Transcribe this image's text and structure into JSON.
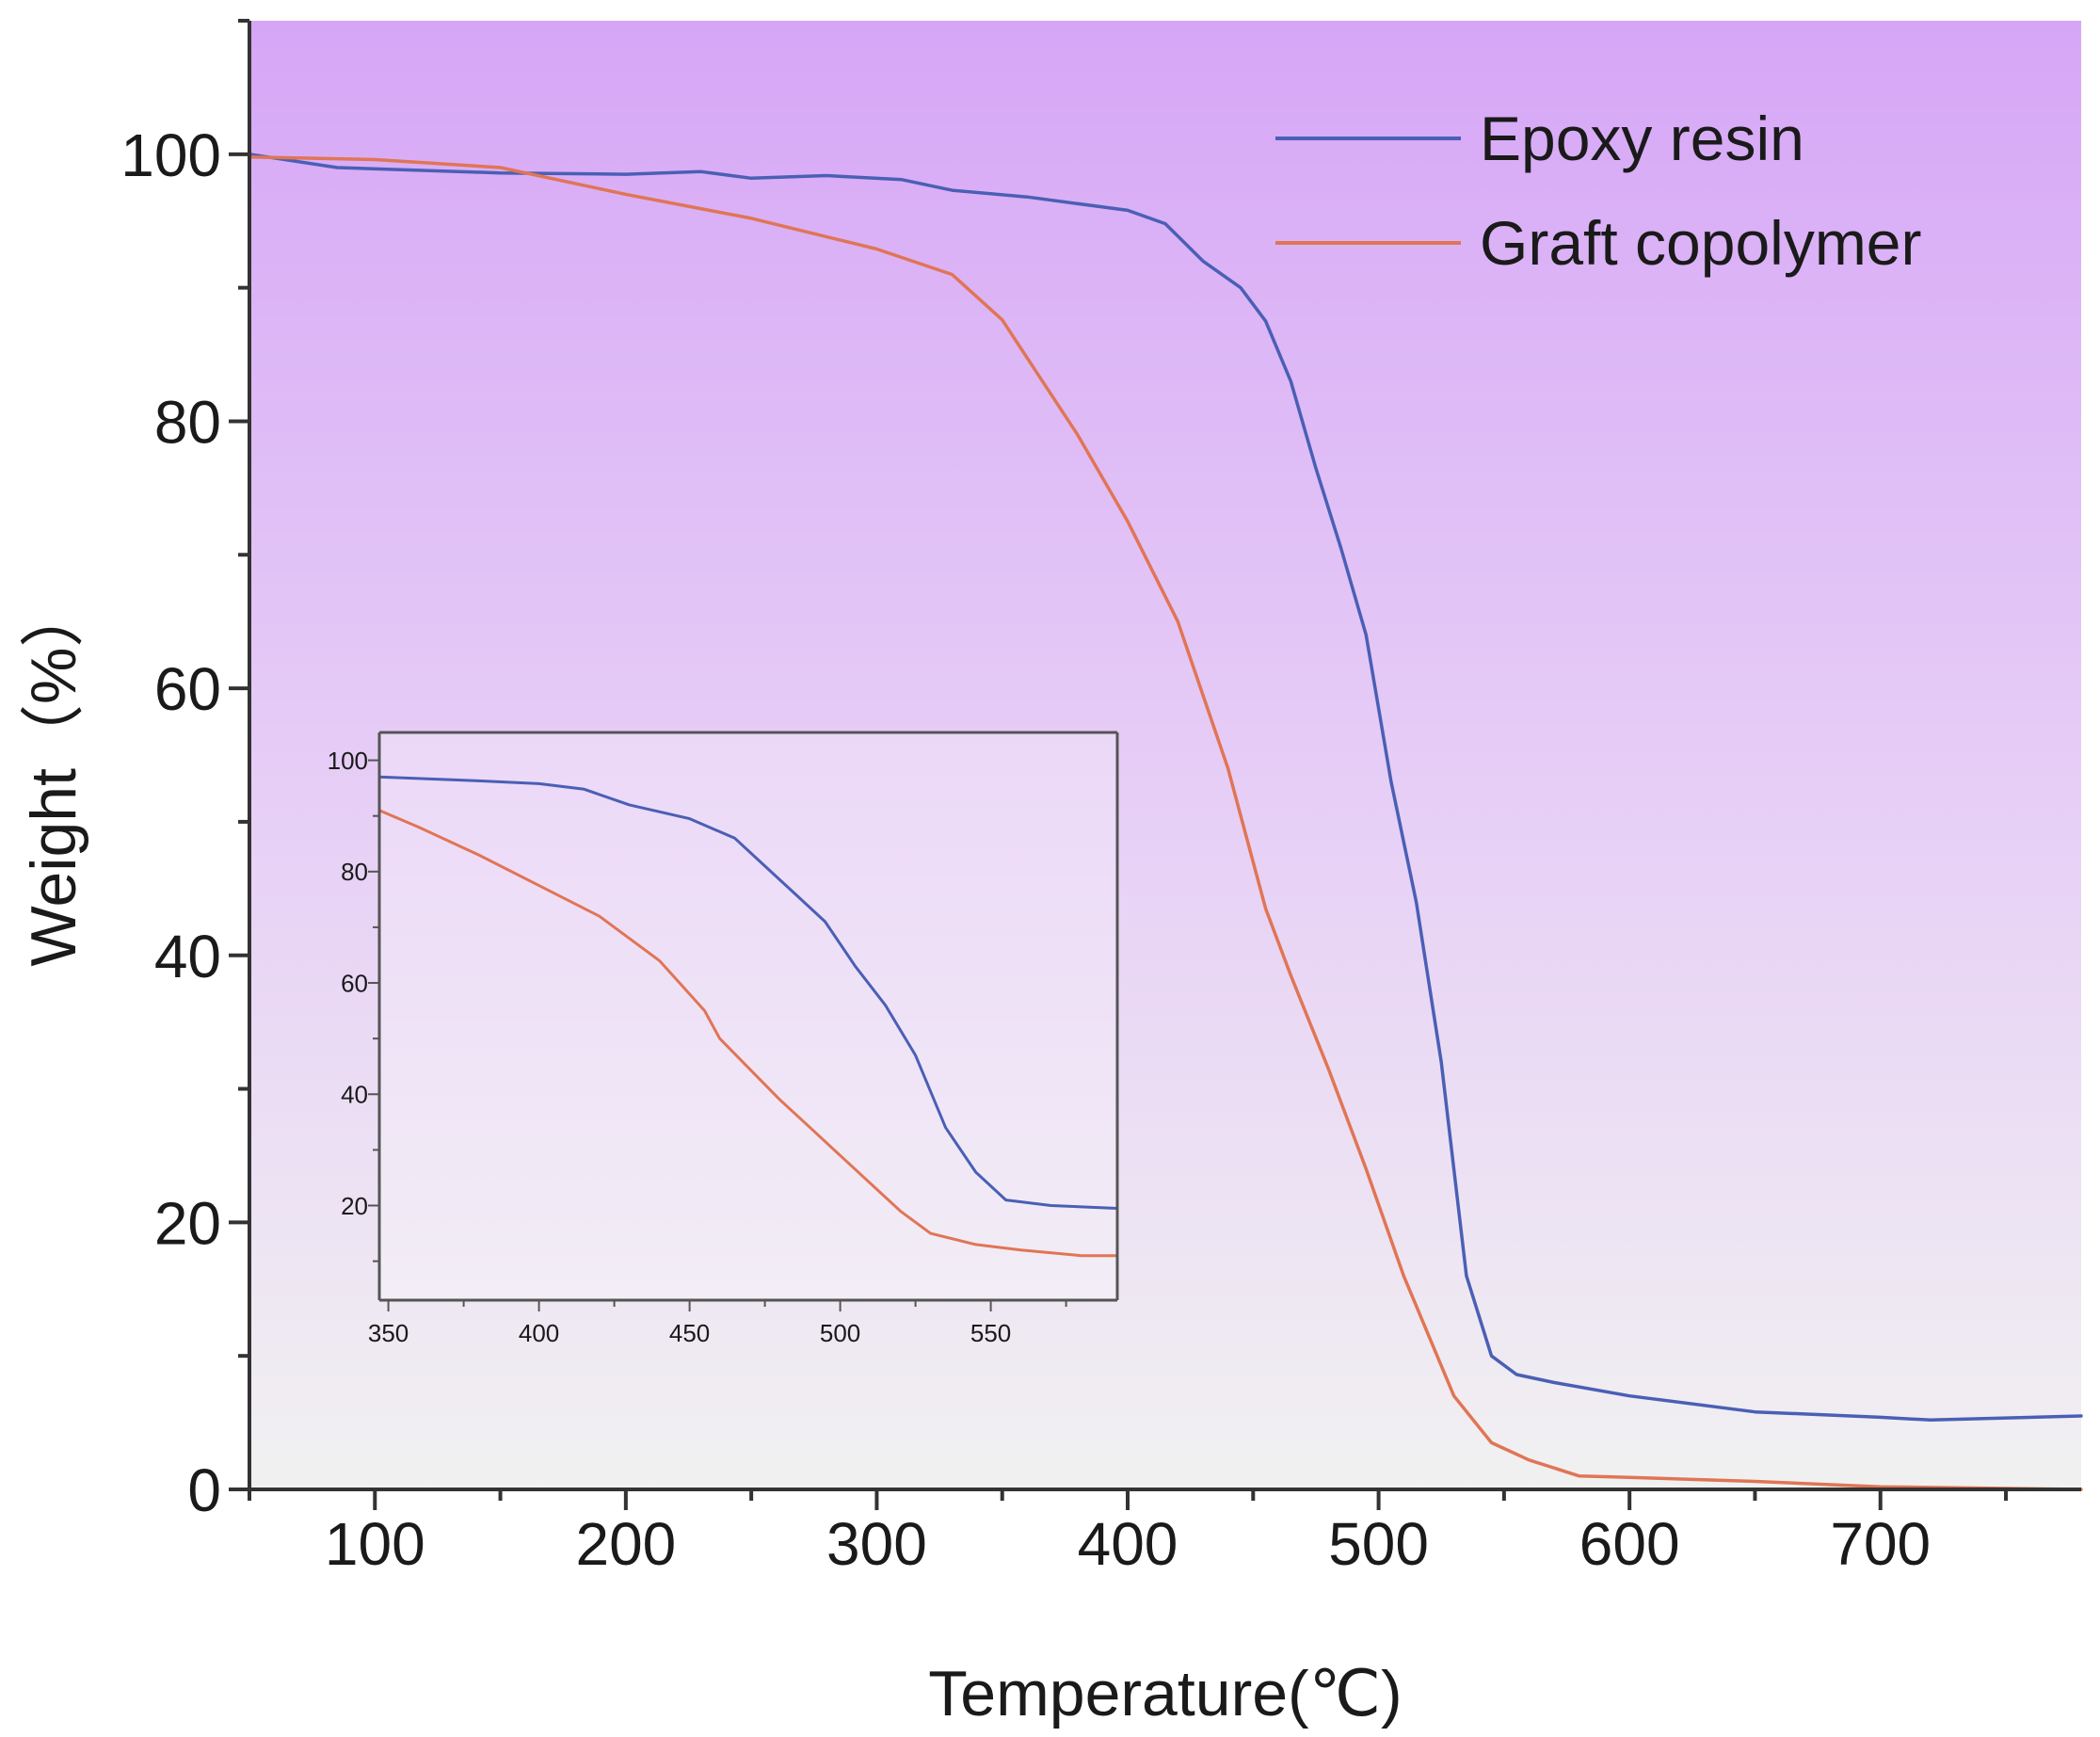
{
  "chart_data": [
    {
      "type": "line",
      "role": "main",
      "xlabel": "Temperature(℃)",
      "ylabel": "Weight（%）",
      "xlim": [
        50,
        780
      ],
      "ylim": [
        0,
        110
      ],
      "xticks": [
        100,
        200,
        300,
        400,
        500,
        600,
        700
      ],
      "yticks": [
        0,
        20,
        40,
        60,
        80,
        100
      ],
      "grid": false,
      "legend_position": "top-right",
      "background": {
        "top_color": "#d6a6f6",
        "bottom_color": "#f1f1f1"
      },
      "series": [
        {
          "name": "Epoxy resin",
          "color": "#4a5fb5",
          "x": [
            50,
            85,
            150,
            200,
            230,
            250,
            280,
            310,
            330,
            360,
            400,
            415,
            430,
            445,
            455,
            465,
            475,
            485,
            495,
            505,
            515,
            525,
            535,
            545,
            555,
            570,
            600,
            650,
            700,
            720,
            780
          ],
          "y": [
            100,
            99,
            98.6,
            98.5,
            98.7,
            98.2,
            98.4,
            98.1,
            97.3,
            96.8,
            95.8,
            94.8,
            92.0,
            90.0,
            87.5,
            83.0,
            76.5,
            70.5,
            64.0,
            53.0,
            44.0,
            32.0,
            16.0,
            10.0,
            8.6,
            8.0,
            7.0,
            5.8,
            5.4,
            5.2,
            5.5
          ]
        },
        {
          "name": "Graft copolymer",
          "color": "#e07555",
          "x": [
            50,
            100,
            150,
            200,
            250,
            300,
            330,
            350,
            365,
            380,
            400,
            420,
            440,
            455,
            465,
            480,
            495,
            510,
            520,
            530,
            545,
            560,
            580,
            600,
            650,
            700,
            780
          ],
          "y": [
            99.8,
            99.6,
            99.0,
            97.0,
            95.2,
            92.9,
            91.0,
            87.6,
            83.3,
            79.0,
            72.5,
            65.0,
            54.0,
            43.5,
            38.5,
            31.5,
            24.0,
            16.0,
            11.5,
            7.0,
            3.5,
            2.2,
            1.0,
            0.9,
            0.6,
            0.2,
            0.0
          ]
        }
      ]
    },
    {
      "type": "line",
      "role": "inset",
      "xlim": [
        347,
        592
      ],
      "ylim": [
        3,
        105
      ],
      "xticks": [
        350,
        400,
        450,
        500,
        550
      ],
      "yticks": [
        20,
        40,
        60,
        80,
        100
      ],
      "series": [
        {
          "name": "Epoxy resin",
          "color": "#4a5fb5",
          "x": [
            347,
            380,
            400,
            415,
            430,
            450,
            465,
            475,
            485,
            495,
            505,
            515,
            525,
            535,
            545,
            555,
            570,
            592
          ],
          "y": [
            97.0,
            96.3,
            95.8,
            94.8,
            92.0,
            89.5,
            86.0,
            81.0,
            76.0,
            71.0,
            63.0,
            56.0,
            47.0,
            34.0,
            26.0,
            21.0,
            20.0,
            19.5
          ]
        },
        {
          "name": "Graft copolymer",
          "color": "#e07555",
          "x": [
            347,
            360,
            380,
            400,
            420,
            440,
            450,
            455,
            460,
            470,
            480,
            490,
            500,
            510,
            520,
            530,
            545,
            560,
            580,
            592
          ],
          "y": [
            91.0,
            88.0,
            83.0,
            77.5,
            72.0,
            64.0,
            58.0,
            55.0,
            50.0,
            44.5,
            39.0,
            34.0,
            29.0,
            24.0,
            19.0,
            15.0,
            13.0,
            12.0,
            11.0,
            11.0
          ]
        }
      ]
    }
  ]
}
